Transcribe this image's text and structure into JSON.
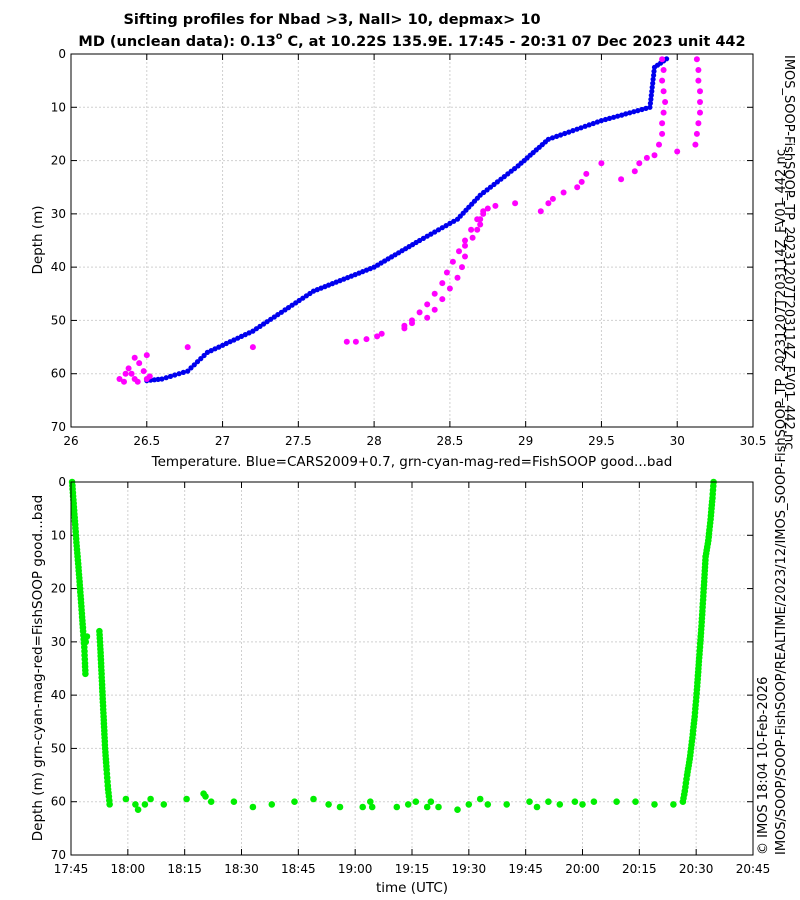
{
  "titles": {
    "line1": "Sifting profiles for Nbad >3, Nall> 10, depmax> 10",
    "line2_prefix": "MD (unclean data): 0.13",
    "line2_degree": "o",
    "line2_suffix": " C, at 10.22S 135.9E. 17:45 - 20:31 07 Dec 2023 unit 442"
  },
  "side_text": {
    "right_top": "IMOS_SOOP-FishSOOP_TP_20231207T203114Z_FV01_442.nc",
    "right_bottom_line1": "© IMOS 18:04 10-Feb-2026",
    "right_bottom_line2": "IMOS/SOOP/SOOP-FishSOOP/REALTIME/2023/12/IMOS_SOOP-FishSOOP_TP_20231207T203114Z_FV01_442.nc"
  },
  "colors": {
    "blue": "#0000ee",
    "magenta": "#ff00ff",
    "green": "#00ee00",
    "grid": "#d0d0d0"
  },
  "chart_data": [
    {
      "type": "scatter",
      "xlabel": "Temperature. Blue=CARS2009+0.7, grn-cyan-mag-red=FishSOOP good...bad",
      "ylabel": "Depth (m)",
      "xlim": [
        26,
        30.5
      ],
      "ylim": [
        0,
        70
      ],
      "y_reversed": true,
      "grid": true,
      "xticks": [
        "26",
        "26.5",
        "27",
        "27.5",
        "28",
        "28.5",
        "29",
        "29.5",
        "30",
        "30.5"
      ],
      "yticks": [
        "0",
        "10",
        "20",
        "30",
        "40",
        "50",
        "60",
        "70"
      ],
      "series": [
        {
          "name": "CARS2009+0.7",
          "color": "blue",
          "style": "dense-line",
          "points": [
            [
              29.93,
              0.9
            ],
            [
              29.85,
              2.5
            ],
            [
              29.82,
              10
            ],
            [
              29.5,
              12.5
            ],
            [
              29.15,
              16
            ],
            [
              28.95,
              21
            ],
            [
              28.7,
              26.5
            ],
            [
              28.55,
              31
            ],
            [
              28.3,
              35
            ],
            [
              28.0,
              40
            ],
            [
              27.6,
              44.5
            ],
            [
              27.2,
              52
            ],
            [
              26.9,
              56
            ],
            [
              26.77,
              59.5
            ],
            [
              26.6,
              61
            ],
            [
              26.5,
              61.3
            ]
          ]
        },
        {
          "name": "FishSOOP bad",
          "color": "magenta",
          "style": "markers",
          "points": [
            [
              29.9,
              1
            ],
            [
              29.91,
              3
            ],
            [
              29.9,
              5
            ],
            [
              29.91,
              7
            ],
            [
              29.92,
              9
            ],
            [
              29.91,
              11
            ],
            [
              29.9,
              13
            ],
            [
              29.9,
              15
            ],
            [
              29.88,
              17
            ],
            [
              29.85,
              19
            ],
            [
              29.8,
              19.5
            ],
            [
              29.75,
              20.5
            ],
            [
              29.72,
              22
            ],
            [
              29.63,
              23.5
            ],
            [
              30.13,
              1
            ],
            [
              30.14,
              3
            ],
            [
              30.14,
              5
            ],
            [
              30.15,
              7
            ],
            [
              30.15,
              9
            ],
            [
              30.15,
              11
            ],
            [
              30.14,
              13
            ],
            [
              30.13,
              15
            ],
            [
              30.12,
              17
            ],
            [
              30.0,
              18.3
            ],
            [
              29.5,
              20.5
            ],
            [
              29.4,
              22.5
            ],
            [
              29.37,
              24
            ],
            [
              29.34,
              25
            ],
            [
              29.25,
              26
            ],
            [
              29.18,
              27.2
            ],
            [
              29.15,
              28
            ],
            [
              29.1,
              29.5
            ],
            [
              28.93,
              28
            ],
            [
              28.8,
              28.5
            ],
            [
              28.75,
              29
            ],
            [
              28.72,
              30
            ],
            [
              28.7,
              31
            ],
            [
              28.7,
              32
            ],
            [
              28.68,
              33
            ],
            [
              28.65,
              34.5
            ],
            [
              28.6,
              36
            ],
            [
              28.6,
              38
            ],
            [
              28.58,
              40
            ],
            [
              28.55,
              42
            ],
            [
              28.5,
              44
            ],
            [
              28.45,
              46
            ],
            [
              28.4,
              48
            ],
            [
              28.35,
              49.5
            ],
            [
              28.25,
              50.5
            ],
            [
              28.2,
              51.5
            ],
            [
              28.72,
              29.5
            ],
            [
              28.68,
              31
            ],
            [
              28.64,
              33
            ],
            [
              28.6,
              35
            ],
            [
              28.56,
              37
            ],
            [
              28.52,
              39
            ],
            [
              28.48,
              41
            ],
            [
              28.45,
              43
            ],
            [
              28.4,
              45
            ],
            [
              28.35,
              47
            ],
            [
              28.3,
              48.5
            ],
            [
              28.25,
              50
            ],
            [
              28.2,
              51
            ],
            [
              28.05,
              52.5
            ],
            [
              28.02,
              53
            ],
            [
              27.95,
              53.5
            ],
            [
              27.88,
              54
            ],
            [
              27.82,
              54
            ],
            [
              27.2,
              55
            ],
            [
              26.77,
              55
            ],
            [
              26.5,
              56.5
            ],
            [
              26.42,
              57
            ],
            [
              26.45,
              58
            ],
            [
              26.38,
              59
            ],
            [
              26.4,
              60
            ],
            [
              26.42,
              61
            ],
            [
              26.36,
              60
            ],
            [
              26.48,
              59.5
            ],
            [
              26.52,
              60.5
            ],
            [
              26.35,
              61.5
            ],
            [
              26.32,
              61
            ],
            [
              26.44,
              61.5
            ],
            [
              26.5,
              61
            ]
          ]
        }
      ]
    },
    {
      "type": "scatter",
      "xlabel": "time (UTC)",
      "ylabel": "Depth (m) grn-cyan-mag-red=FishSOOP good...bad",
      "xlim_minutes": [
        0,
        180
      ],
      "ylim": [
        0,
        70
      ],
      "y_reversed": true,
      "grid": true,
      "xticks": [
        "17:45",
        "18:00",
        "18:15",
        "18:30",
        "18:45",
        "19:00",
        "19:15",
        "19:30",
        "19:45",
        "20:00",
        "20:15",
        "20:30",
        "20:45"
      ],
      "yticks": [
        "0",
        "10",
        "20",
        "30",
        "40",
        "50",
        "60",
        "70"
      ],
      "series": [
        {
          "name": "FishSOOP good",
          "color": "green",
          "style": "markers",
          "descent_1": [
            [
              0.3,
              0
            ],
            [
              0.9,
              6
            ],
            [
              1.5,
              12
            ],
            [
              2.2,
              18
            ],
            [
              2.8,
              24
            ],
            [
              3.2,
              28
            ],
            [
              3.5,
              31
            ],
            [
              3.7,
              34
            ],
            [
              3.8,
              36
            ]
          ],
          "blip": [
            [
              4.2,
              29
            ],
            [
              3.9,
              30
            ]
          ],
          "descent_2": [
            [
              7.5,
              28
            ],
            [
              7.8,
              32
            ],
            [
              8.2,
              38
            ],
            [
              8.6,
              44
            ],
            [
              9.0,
              50
            ],
            [
              9.4,
              54
            ],
            [
              9.7,
              57
            ],
            [
              10.0,
              59
            ],
            [
              10.2,
              60.5
            ]
          ],
          "bottom": [
            [
              14.5,
              59.5
            ],
            [
              17.0,
              60.5
            ],
            [
              17.7,
              61.5
            ],
            [
              19.5,
              60.5
            ],
            [
              21.0,
              59.5
            ],
            [
              24.5,
              60.5
            ],
            [
              30.5,
              59.5
            ],
            [
              35.0,
              58.5
            ],
            [
              35.5,
              59.0
            ],
            [
              37.0,
              60.0
            ],
            [
              43.0,
              60.0
            ],
            [
              48.0,
              61.0
            ],
            [
              53.0,
              60.5
            ],
            [
              59.0,
              60.0
            ],
            [
              64.0,
              59.5
            ],
            [
              68.0,
              60.5
            ],
            [
              71.0,
              61.0
            ],
            [
              77.0,
              61.0
            ],
            [
              79.0,
              60.0
            ],
            [
              79.5,
              61.0
            ],
            [
              86.0,
              61.0
            ],
            [
              89.0,
              60.5
            ],
            [
              91.0,
              60.0
            ],
            [
              94.0,
              61.0
            ],
            [
              95.0,
              60.0
            ],
            [
              97.0,
              61.0
            ],
            [
              102.0,
              61.5
            ],
            [
              105.0,
              60.5
            ],
            [
              108.0,
              59.5
            ],
            [
              110.0,
              60.5
            ],
            [
              115.0,
              60.5
            ],
            [
              121.0,
              60.0
            ],
            [
              123.0,
              61.0
            ],
            [
              126.0,
              60.0
            ],
            [
              129.0,
              60.5
            ],
            [
              133.0,
              60.0
            ],
            [
              135.0,
              60.5
            ],
            [
              138.0,
              60.0
            ],
            [
              144.0,
              60.0
            ],
            [
              149.0,
              60.0
            ],
            [
              154.0,
              60.5
            ],
            [
              159.0,
              60.5
            ]
          ],
          "ascent": [
            [
              161.5,
              60
            ],
            [
              162.0,
              58
            ],
            [
              162.6,
              55
            ],
            [
              163.3,
              52
            ],
            [
              164.0,
              48
            ],
            [
              164.6,
              44
            ],
            [
              165.2,
              39
            ],
            [
              165.8,
              33
            ],
            [
              166.4,
              27
            ],
            [
              167.0,
              20
            ],
            [
              167.5,
              14
            ],
            [
              168.2,
              11
            ],
            [
              168.8,
              7
            ],
            [
              169.3,
              3
            ],
            [
              169.6,
              0
            ]
          ]
        }
      ]
    }
  ]
}
